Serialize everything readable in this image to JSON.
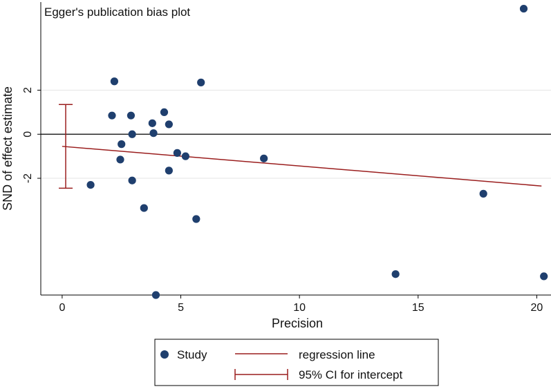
{
  "chart_data": {
    "type": "scatter",
    "title": "Egger's publication bias plot",
    "xlabel": "Precision",
    "ylabel": "SND of effect estimate",
    "xlim": [
      -0.9,
      20.6
    ],
    "ylim": [
      -7.3,
      6.0
    ],
    "x_ticks": [
      0,
      5,
      10,
      15,
      20
    ],
    "y_ticks": [
      -2,
      0,
      2
    ],
    "x_tick_labels": [
      "0",
      "5",
      "10",
      "15",
      "20"
    ],
    "y_tick_labels": [
      "-2",
      "0",
      "2"
    ],
    "grid": true,
    "reference_line_y": 0,
    "series": [
      {
        "name": "Study",
        "points": [
          {
            "x": 1.2,
            "y": -2.3
          },
          {
            "x": 2.1,
            "y": 0.85
          },
          {
            "x": 2.2,
            "y": 2.4
          },
          {
            "x": 2.45,
            "y": -1.15
          },
          {
            "x": 2.5,
            "y": -0.45
          },
          {
            "x": 2.9,
            "y": 0.85
          },
          {
            "x": 2.95,
            "y": 0.0
          },
          {
            "x": 2.95,
            "y": -2.1
          },
          {
            "x": 3.45,
            "y": -3.35
          },
          {
            "x": 3.8,
            "y": 0.5
          },
          {
            "x": 3.85,
            "y": 0.05
          },
          {
            "x": 3.95,
            "y": -7.3
          },
          {
            "x": 4.3,
            "y": 1.0
          },
          {
            "x": 4.5,
            "y": 0.45
          },
          {
            "x": 4.5,
            "y": -1.65
          },
          {
            "x": 4.85,
            "y": -0.85
          },
          {
            "x": 5.2,
            "y": -1.0
          },
          {
            "x": 5.65,
            "y": -3.85
          },
          {
            "x": 5.85,
            "y": 2.35
          },
          {
            "x": 8.5,
            "y": -1.1
          },
          {
            "x": 14.05,
            "y": -6.35
          },
          {
            "x": 17.75,
            "y": -2.7
          },
          {
            "x": 19.45,
            "y": 5.7
          },
          {
            "x": 20.3,
            "y": -6.45
          }
        ]
      }
    ],
    "regression_line": {
      "name": "regression line",
      "x": [
        0,
        20.2
      ],
      "y": [
        -0.55,
        -2.35
      ]
    },
    "ci_intercept": {
      "name": "95% CI for intercept",
      "x": 0.15,
      "low": -2.45,
      "high": 1.35
    },
    "legend": {
      "position": "bottom",
      "entries": [
        "Study",
        "regression line",
        "95% CI for intercept"
      ]
    },
    "colors": {
      "points": "#1f3f6e",
      "regression": "#9a1d1d",
      "ci": "#9a1d1d"
    }
  }
}
